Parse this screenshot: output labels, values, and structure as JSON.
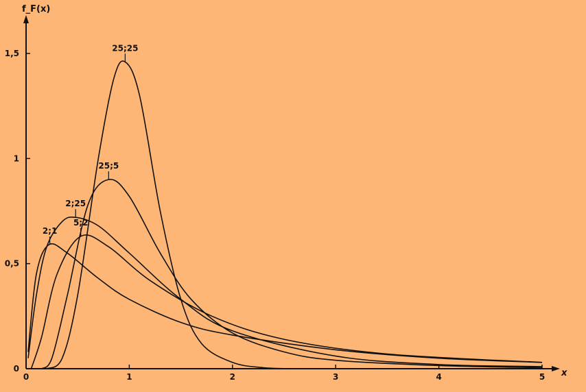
{
  "colors": {
    "background": "#FDB676",
    "ink": "#111111"
  },
  "chart_data": {
    "type": "line",
    "title": "",
    "xlabel": "x",
    "ylabel": "f_F(x)",
    "xlim": [
      0,
      5
    ],
    "ylim": [
      0,
      1.5
    ],
    "x_ticks": [
      {
        "value": 0,
        "label": "0"
      },
      {
        "value": 1,
        "label": "1"
      },
      {
        "value": 2,
        "label": "2"
      },
      {
        "value": 3,
        "label": "3"
      },
      {
        "value": 4,
        "label": "4"
      },
      {
        "value": 5,
        "label": "5"
      }
    ],
    "y_ticks": [
      {
        "value": 0,
        "label": "0"
      },
      {
        "value": 0.5,
        "label": "0,5"
      },
      {
        "value": 1,
        "label": "1"
      },
      {
        "value": 1.5,
        "label": "1,5"
      }
    ],
    "grid": false,
    "legend": "none",
    "series": [
      {
        "name": "2;1",
        "label_at": [
          0.23,
          0.59
        ],
        "x": [
          0.02,
          0.1,
          0.22,
          0.4,
          0.7,
          1.0,
          1.5,
          2.0,
          3.0,
          4.0,
          5.0
        ],
        "y": [
          0.08,
          0.45,
          0.59,
          0.55,
          0.43,
          0.33,
          0.22,
          0.16,
          0.09,
          0.05,
          0.03
        ]
      },
      {
        "name": "2;25",
        "label_at": [
          0.48,
          0.72
        ],
        "x": [
          0.02,
          0.1,
          0.2,
          0.35,
          0.48,
          0.7,
          1.0,
          1.5,
          2.0,
          3.0,
          4.0,
          5.0
        ],
        "y": [
          0.05,
          0.35,
          0.58,
          0.7,
          0.72,
          0.68,
          0.55,
          0.33,
          0.18,
          0.06,
          0.02,
          0.01
        ]
      },
      {
        "name": "5;2",
        "label_at": [
          0.53,
          0.63
        ],
        "x": [
          0.05,
          0.15,
          0.3,
          0.53,
          0.8,
          1.2,
          1.8,
          2.5,
          3.5,
          5.0
        ],
        "y": [
          0.0,
          0.15,
          0.45,
          0.63,
          0.58,
          0.42,
          0.25,
          0.14,
          0.07,
          0.03
        ]
      },
      {
        "name": "25;5",
        "label_at": [
          0.8,
          0.9
        ],
        "x": [
          0.15,
          0.25,
          0.4,
          0.6,
          0.8,
          1.0,
          1.3,
          1.6,
          2.0,
          2.5,
          3.0,
          4.0,
          5.0
        ],
        "y": [
          0.0,
          0.05,
          0.35,
          0.78,
          0.9,
          0.82,
          0.55,
          0.33,
          0.17,
          0.08,
          0.04,
          0.015,
          0.005
        ]
      },
      {
        "name": "25;25",
        "label_at": [
          0.96,
          1.46
        ],
        "x": [
          0.2,
          0.35,
          0.5,
          0.7,
          0.85,
          0.96,
          1.1,
          1.3,
          1.5,
          1.7,
          2.0,
          2.3,
          2.6
        ],
        "y": [
          0.0,
          0.05,
          0.35,
          1.0,
          1.38,
          1.46,
          1.3,
          0.75,
          0.33,
          0.12,
          0.03,
          0.005,
          0.0
        ]
      }
    ]
  }
}
